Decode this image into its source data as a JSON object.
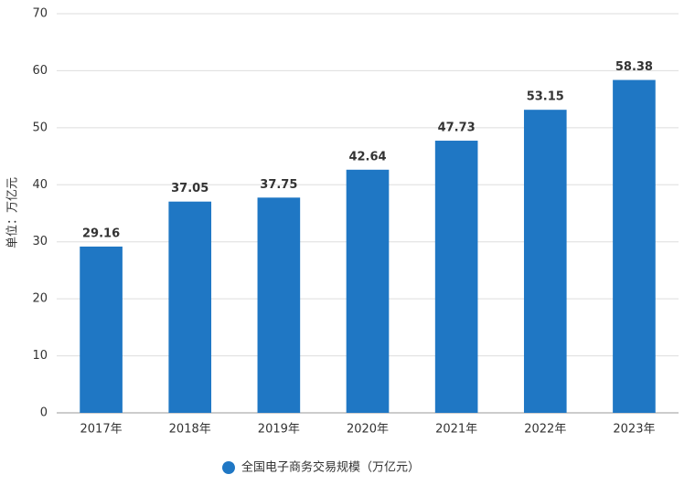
{
  "chart_data": {
    "type": "bar",
    "y_label": "单位：万亿元",
    "categories": [
      "2017年",
      "2018年",
      "2019年",
      "2020年",
      "2021年",
      "2022年",
      "2023年"
    ],
    "series": [
      {
        "name": "全国电子商务交易规模（万亿元）",
        "color": "#1f77c4",
        "values": [
          29.16,
          37.05,
          37.75,
          42.64,
          47.73,
          53.15,
          58.38
        ]
      }
    ],
    "ylim": [
      0,
      70
    ],
    "yticks": [
      0,
      10,
      20,
      30,
      40,
      50,
      60,
      70
    ],
    "grid": true
  }
}
